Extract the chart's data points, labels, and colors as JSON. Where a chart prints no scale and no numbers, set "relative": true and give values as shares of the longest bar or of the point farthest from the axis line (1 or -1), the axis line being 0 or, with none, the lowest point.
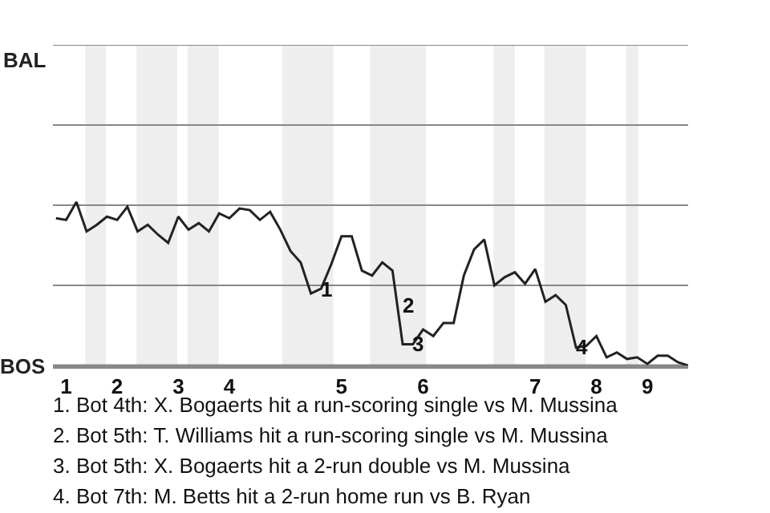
{
  "chart_data": {
    "type": "line",
    "relative": true,
    "categories": [
      null,
      "1",
      null,
      null,
      null,
      null,
      "2",
      null,
      null,
      null,
      null,
      null,
      "3",
      null,
      null,
      null,
      null,
      "4",
      null,
      null,
      null,
      null,
      null,
      null,
      null,
      null,
      null,
      null,
      "5",
      null,
      null,
      null,
      null,
      null,
      null,
      null,
      "6",
      null,
      null,
      null,
      null,
      null,
      null,
      null,
      null,
      null,
      null,
      "7",
      null,
      null,
      null,
      null,
      null,
      "8",
      null,
      null,
      null,
      null,
      "9",
      null,
      null,
      null,
      null
    ],
    "series": [
      {
        "color": "#222222",
        "values": [
          0.9,
          0.89,
          1,
          0.82,
          0.86,
          0.91,
          0.89,
          0.97,
          0.82,
          0.86,
          0.8,
          0.75,
          0.91,
          0.83,
          0.87,
          0.82,
          0.93,
          0.9,
          0.96,
          0.95,
          0.89,
          0.94,
          0.83,
          0.7,
          0.63,
          0.44,
          0.47,
          0.62,
          0.79,
          0.79,
          0.58,
          0.55,
          0.63,
          0.58,
          0.13,
          0.13,
          0.22,
          0.18,
          0.26,
          0.26,
          0.55,
          0.71,
          0.77,
          0.49,
          0.54,
          0.57,
          0.5,
          0.59,
          0.39,
          0.43,
          0.37,
          0.11,
          0.12,
          0.18,
          0.05,
          0.08,
          0.04,
          0.05,
          0.01,
          0.06,
          0.06,
          0.02,
          0
        ],
        "line_style": "solid"
      }
    ],
    "marker": "none",
    "ref_lines": [
      {
        "axis": "y",
        "value": 0,
        "label": "BOS",
        "color": "#888888"
      },
      {
        "axis": "y",
        "value": 0.49,
        "color": "#888888"
      },
      {
        "axis": "y",
        "value": 0.98,
        "color": "#888888"
      },
      {
        "axis": "y",
        "value": 1.47,
        "color": "#888888"
      },
      {
        "axis": "y",
        "value": 1.96,
        "label": "BAL",
        "color": "#888888"
      }
    ],
    "annotations": [
      {
        "text": "1",
        "y": 0.47
      },
      {
        "text": "2",
        "y": 0.13
      },
      {
        "text": "3",
        "y": 0.13
      },
      {
        "text": "4",
        "y": 0.11
      },
      "1. Bot 4th: X. Bogaerts hit a run-scoring single vs M. Mussina",
      "2. Bot 5th: T. Williams hit a run-scoring single vs M. Mussina",
      "3. Bot 5th: X. Bogaerts hit a 2-run double vs M. Mussina",
      "4. Bot 7th: M. Betts hit a 2-run home run vs B. Ryan"
    ]
  }
}
